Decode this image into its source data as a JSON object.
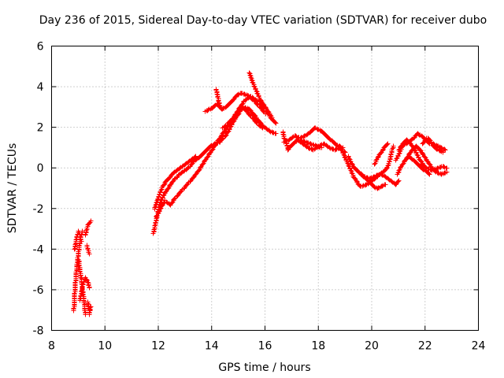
{
  "chart_data": {
    "type": "scatter",
    "title": "Day 236 of 2015, Sidereal Day-to-day VTEC variation (SDTVAR) for receiver dubo",
    "xlabel": "GPS time / hours",
    "ylabel": "SDTVAR / TECUs",
    "xlim": [
      8,
      24
    ],
    "ylim": [
      -8,
      6
    ],
    "x_ticks": [
      8,
      10,
      12,
      14,
      16,
      18,
      20,
      22,
      24
    ],
    "y_ticks": [
      -8,
      -6,
      -4,
      -2,
      0,
      2,
      4,
      6
    ],
    "x_tick_labels": [
      "8",
      "10",
      "12",
      "14",
      "16",
      "18",
      "20",
      "22",
      "24"
    ],
    "y_tick_labels": [
      "-8",
      "-6",
      "-4",
      "-2",
      "0",
      "2",
      "4",
      "6"
    ],
    "grid": true,
    "marker": "+",
    "color": "#ff0000",
    "series": [
      {
        "name": "SDTVAR dubo",
        "tracks": [
          [
            [
              8.82,
              -7.0
            ],
            [
              8.85,
              -6.2
            ],
            [
              8.9,
              -5.3
            ],
            [
              8.95,
              -4.6
            ],
            [
              9.0,
              -4.1
            ],
            [
              9.05,
              -3.6
            ],
            [
              9.1,
              -3.3
            ],
            [
              9.15,
              -3.1
            ]
          ],
          [
            [
              8.85,
              -4.0
            ],
            [
              8.9,
              -3.6
            ],
            [
              8.95,
              -3.3
            ],
            [
              9.0,
              -3.1
            ],
            [
              9.05,
              -3.3
            ],
            [
              9.1,
              -3.6
            ]
          ],
          [
            [
              9.0,
              -4.5
            ],
            [
              9.05,
              -5.0
            ],
            [
              9.1,
              -5.5
            ],
            [
              9.15,
              -6.0
            ],
            [
              9.2,
              -6.5
            ],
            [
              9.25,
              -7.2
            ]
          ],
          [
            [
              9.05,
              -6.5
            ],
            [
              9.1,
              -6.2
            ],
            [
              9.15,
              -5.8
            ],
            [
              9.25,
              -5.4
            ],
            [
              9.35,
              -5.6
            ],
            [
              9.4,
              -5.9
            ]
          ],
          [
            [
              9.25,
              -3.3
            ],
            [
              9.3,
              -3.0
            ],
            [
              9.35,
              -2.8
            ],
            [
              9.4,
              -2.7
            ],
            [
              9.45,
              -2.6
            ]
          ],
          [
            [
              9.3,
              -3.8
            ],
            [
              9.35,
              -4.0
            ],
            [
              9.4,
              -4.2
            ]
          ],
          [
            [
              9.35,
              -6.6
            ],
            [
              9.4,
              -7.0
            ],
            [
              9.45,
              -6.8
            ],
            [
              9.4,
              -7.2
            ]
          ],
          [
            [
              11.8,
              -3.2
            ],
            [
              11.9,
              -2.6
            ],
            [
              12.0,
              -2.0
            ],
            [
              12.1,
              -1.6
            ],
            [
              12.2,
              -1.3
            ],
            [
              12.35,
              -1.0
            ],
            [
              12.5,
              -0.7
            ],
            [
              12.7,
              -0.4
            ],
            [
              12.9,
              -0.2
            ],
            [
              13.1,
              0.0
            ],
            [
              13.3,
              0.3
            ],
            [
              13.5,
              0.5
            ],
            [
              13.65,
              0.7
            ],
            [
              13.8,
              0.9
            ],
            [
              13.95,
              1.1
            ],
            [
              14.1,
              1.2
            ],
            [
              14.3,
              1.3
            ],
            [
              14.5,
              1.6
            ],
            [
              14.65,
              1.9
            ],
            [
              14.8,
              2.3
            ],
            [
              14.95,
              2.6
            ],
            [
              15.1,
              2.9
            ],
            [
              15.25,
              3.0
            ],
            [
              15.4,
              2.9
            ],
            [
              15.55,
              2.7
            ],
            [
              15.7,
              2.4
            ],
            [
              15.85,
              2.2
            ],
            [
              16.0,
              2.0
            ],
            [
              16.2,
              1.8
            ],
            [
              16.4,
              1.7
            ]
          ],
          [
            [
              11.85,
              -2.0
            ],
            [
              11.95,
              -1.6
            ],
            [
              12.05,
              -1.2
            ],
            [
              12.15,
              -0.9
            ],
            [
              12.3,
              -0.6
            ],
            [
              12.45,
              -0.4
            ],
            [
              12.6,
              -0.2
            ],
            [
              12.8,
              0.0
            ],
            [
              13.0,
              0.2
            ],
            [
              13.2,
              0.4
            ],
            [
              13.4,
              0.6
            ]
          ],
          [
            [
              11.9,
              -2.4
            ],
            [
              12.0,
              -2.2
            ],
            [
              12.1,
              -1.9
            ],
            [
              12.25,
              -1.6
            ],
            [
              12.45,
              -1.8
            ],
            [
              12.6,
              -1.5
            ],
            [
              12.8,
              -1.2
            ],
            [
              13.0,
              -0.9
            ],
            [
              13.2,
              -0.6
            ],
            [
              13.4,
              -0.3
            ],
            [
              13.6,
              0.1
            ],
            [
              13.8,
              0.5
            ],
            [
              14.0,
              0.9
            ],
            [
              14.2,
              1.3
            ],
            [
              14.4,
              1.7
            ],
            [
              14.6,
              2.1
            ],
            [
              14.8,
              2.5
            ],
            [
              15.0,
              2.9
            ],
            [
              15.2,
              3.3
            ],
            [
              15.4,
              3.5
            ],
            [
              15.6,
              3.3
            ],
            [
              15.8,
              3.0
            ],
            [
              16.0,
              2.7
            ]
          ],
          [
            [
              13.75,
              2.8
            ],
            [
              13.9,
              2.9
            ],
            [
              14.05,
              3.0
            ],
            [
              14.2,
              3.2
            ],
            [
              14.35,
              2.9
            ],
            [
              14.5,
              3.0
            ],
            [
              14.65,
              3.2
            ],
            [
              14.8,
              3.4
            ],
            [
              14.95,
              3.6
            ],
            [
              15.1,
              3.7
            ],
            [
              15.3,
              3.6
            ],
            [
              15.5,
              3.5
            ],
            [
              15.7,
              3.3
            ],
            [
              15.9,
              3.0
            ],
            [
              16.1,
              2.7
            ],
            [
              16.25,
              2.4
            ],
            [
              16.4,
              2.2
            ]
          ],
          [
            [
              14.15,
              3.9
            ],
            [
              14.2,
              3.6
            ],
            [
              14.25,
              3.3
            ],
            [
              14.3,
              3.0
            ]
          ],
          [
            [
              15.4,
              4.7
            ],
            [
              15.5,
              4.3
            ],
            [
              15.6,
              4.0
            ],
            [
              15.7,
              3.7
            ],
            [
              15.8,
              3.4
            ],
            [
              15.95,
              3.1
            ],
            [
              16.1,
              2.8
            ],
            [
              16.25,
              2.5
            ]
          ],
          [
            [
              14.4,
              2.0
            ],
            [
              14.6,
              2.2
            ],
            [
              14.8,
              2.5
            ],
            [
              15.0,
              2.8
            ],
            [
              15.15,
              3.0
            ],
            [
              15.3,
              2.8
            ],
            [
              15.5,
              2.5
            ],
            [
              15.7,
              2.2
            ],
            [
              15.9,
              2.0
            ]
          ],
          [
            [
              16.65,
              1.8
            ],
            [
              16.7,
              1.5
            ],
            [
              16.8,
              1.2
            ],
            [
              16.85,
              0.9
            ],
            [
              16.95,
              1.1
            ],
            [
              17.1,
              1.3
            ],
            [
              17.3,
              1.4
            ],
            [
              17.5,
              1.3
            ],
            [
              17.7,
              1.2
            ],
            [
              17.9,
              1.1
            ],
            [
              18.1,
              1.0
            ]
          ],
          [
            [
              16.7,
              1.3
            ],
            [
              16.9,
              1.4
            ],
            [
              17.1,
              1.6
            ],
            [
              17.3,
              1.5
            ],
            [
              17.5,
              1.6
            ],
            [
              17.7,
              1.8
            ],
            [
              17.85,
              2.0
            ],
            [
              18.0,
              1.9
            ],
            [
              18.15,
              1.8
            ],
            [
              18.3,
              1.6
            ],
            [
              18.45,
              1.4
            ],
            [
              18.6,
              1.2
            ],
            [
              18.75,
              1.1
            ],
            [
              18.9,
              1.0
            ]
          ],
          [
            [
              17.2,
              1.4
            ],
            [
              17.4,
              1.2
            ],
            [
              17.6,
              1.0
            ],
            [
              17.8,
              0.9
            ],
            [
              18.0,
              1.1
            ],
            [
              18.2,
              1.2
            ],
            [
              18.4,
              1.0
            ],
            [
              18.6,
              0.9
            ],
            [
              18.8,
              1.0
            ],
            [
              19.0,
              0.8
            ]
          ],
          [
            [
              18.8,
              1.0
            ],
            [
              18.9,
              0.8
            ],
            [
              19.0,
              0.5
            ],
            [
              19.1,
              0.2
            ],
            [
              19.2,
              -0.1
            ],
            [
              19.3,
              -0.4
            ],
            [
              19.4,
              -0.6
            ],
            [
              19.5,
              -0.8
            ],
            [
              19.6,
              -0.9
            ],
            [
              19.8,
              -0.8
            ],
            [
              20.0,
              -0.6
            ],
            [
              20.2,
              -0.4
            ],
            [
              20.4,
              -0.2
            ],
            [
              20.55,
              0.0
            ],
            [
              20.65,
              0.3
            ],
            [
              20.7,
              0.6
            ],
            [
              20.75,
              0.9
            ],
            [
              20.8,
              1.1
            ]
          ],
          [
            [
              19.1,
              0.6
            ],
            [
              19.2,
              0.3
            ],
            [
              19.35,
              0.0
            ],
            [
              19.5,
              -0.2
            ],
            [
              19.7,
              -0.4
            ],
            [
              19.9,
              -0.5
            ],
            [
              20.1,
              -0.4
            ],
            [
              20.3,
              -0.3
            ],
            [
              20.5,
              -0.4
            ],
            [
              20.7,
              -0.6
            ],
            [
              20.9,
              -0.8
            ],
            [
              21.0,
              -0.6
            ]
          ],
          [
            [
              19.6,
              -0.3
            ],
            [
              19.75,
              -0.5
            ],
            [
              19.9,
              -0.7
            ],
            [
              20.05,
              -0.9
            ],
            [
              20.2,
              -1.0
            ],
            [
              20.35,
              -0.9
            ],
            [
              20.5,
              -0.8
            ]
          ],
          [
            [
              20.1,
              0.2
            ],
            [
              20.2,
              0.5
            ],
            [
              20.3,
              0.7
            ],
            [
              20.4,
              0.9
            ],
            [
              20.5,
              1.1
            ],
            [
              20.6,
              1.2
            ]
          ],
          [
            [
              20.9,
              0.4
            ],
            [
              21.0,
              0.7
            ],
            [
              21.1,
              1.0
            ],
            [
              21.25,
              1.2
            ],
            [
              21.4,
              1.3
            ],
            [
              21.55,
              1.5
            ],
            [
              21.7,
              1.7
            ],
            [
              21.85,
              1.6
            ],
            [
              22.0,
              1.4
            ],
            [
              22.15,
              1.2
            ],
            [
              22.3,
              1.2
            ],
            [
              22.45,
              1.1
            ],
            [
              22.6,
              1.0
            ],
            [
              22.75,
              0.9
            ]
          ],
          [
            [
              20.95,
              -0.3
            ],
            [
              21.05,
              0.0
            ],
            [
              21.2,
              0.3
            ],
            [
              21.35,
              0.6
            ],
            [
              21.5,
              0.9
            ],
            [
              21.65,
              1.1
            ],
            [
              21.8,
              0.9
            ],
            [
              21.95,
              0.6
            ],
            [
              22.1,
              0.3
            ],
            [
              22.25,
              0.0
            ],
            [
              22.4,
              -0.2
            ],
            [
              22.6,
              -0.3
            ],
            [
              22.8,
              -0.2
            ]
          ],
          [
            [
              21.0,
              0.9
            ],
            [
              21.15,
              1.2
            ],
            [
              21.3,
              1.4
            ],
            [
              21.45,
              1.2
            ],
            [
              21.6,
              0.9
            ],
            [
              21.75,
              0.5
            ],
            [
              21.9,
              0.2
            ],
            [
              22.05,
              0.0
            ],
            [
              22.25,
              -0.1
            ],
            [
              22.45,
              0.0
            ],
            [
              22.65,
              0.1
            ],
            [
              22.8,
              0.0
            ]
          ],
          [
            [
              21.1,
              0.1
            ],
            [
              21.25,
              0.4
            ],
            [
              21.4,
              0.6
            ],
            [
              21.55,
              0.4
            ],
            [
              21.7,
              0.2
            ],
            [
              21.85,
              0.0
            ],
            [
              22.0,
              -0.1
            ],
            [
              22.15,
              -0.3
            ]
          ],
          [
            [
              21.9,
              1.2
            ],
            [
              22.05,
              1.5
            ],
            [
              22.15,
              1.4
            ],
            [
              22.25,
              1.2
            ],
            [
              22.35,
              1.0
            ],
            [
              22.5,
              0.9
            ],
            [
              22.65,
              0.8
            ]
          ]
        ]
      }
    ]
  }
}
